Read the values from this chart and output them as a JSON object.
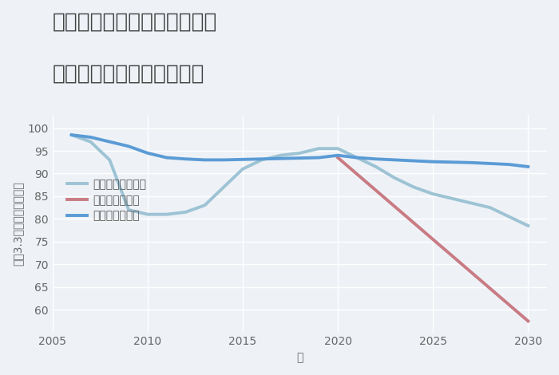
{
  "title_line1": "奈良県吉野郡大淀町佐名伝の",
  "title_line2": "中古マンションの価格推移",
  "xlabel": "年",
  "ylabel": "坪（3.3㎡）単価（万円）",
  "ylim": [
    55,
    103
  ],
  "xlim": [
    2005,
    2031
  ],
  "yticks": [
    60,
    65,
    70,
    75,
    80,
    85,
    90,
    95,
    100
  ],
  "xticks": [
    2005,
    2010,
    2015,
    2020,
    2025,
    2030
  ],
  "good_scenario": {
    "x": [
      2006,
      2007,
      2008,
      2009,
      2010,
      2011,
      2012,
      2013,
      2014,
      2015,
      2016,
      2017,
      2018,
      2019,
      2020,
      2021,
      2022,
      2023,
      2024,
      2025,
      2026,
      2027,
      2028,
      2029,
      2030
    ],
    "y": [
      98.5,
      98,
      97,
      96,
      94.5,
      93.5,
      93.2,
      93.0,
      93.0,
      93.1,
      93.2,
      93.3,
      93.4,
      93.5,
      94.0,
      93.5,
      93.2,
      93.0,
      92.8,
      92.6,
      92.5,
      92.4,
      92.2,
      92.0,
      91.5
    ],
    "color": "#5B9BD5",
    "linewidth": 2.8,
    "label": "グッドシナリオ"
  },
  "bad_scenario": {
    "x": [
      2020,
      2030
    ],
    "y": [
      93.5,
      57.5
    ],
    "color": "#C97B84",
    "linewidth": 2.8,
    "label": "バッドシナリオ"
  },
  "normal_scenario": {
    "x": [
      2006,
      2007,
      2008,
      2009,
      2010,
      2011,
      2012,
      2013,
      2014,
      2015,
      2016,
      2017,
      2018,
      2019,
      2020,
      2021,
      2022,
      2023,
      2024,
      2025,
      2026,
      2027,
      2028,
      2029,
      2030
    ],
    "y": [
      98.5,
      97,
      93,
      82,
      81,
      81,
      81.5,
      83,
      87,
      91,
      93,
      94,
      94.5,
      95.5,
      95.5,
      93.5,
      91.5,
      89,
      87,
      85.5,
      84.5,
      83.5,
      82.5,
      80.5,
      78.5
    ],
    "color": "#9DC3D4",
    "linewidth": 2.8,
    "label": "ノーマルシナリオ"
  },
  "bg_color": "#EEF2F7",
  "plot_bg_color": "#EEF2F7",
  "grid_color": "#FFFFFF",
  "title_color": "#444444",
  "title_fontsize": 19,
  "axis_label_fontsize": 10,
  "tick_fontsize": 10,
  "legend_fontsize": 10
}
